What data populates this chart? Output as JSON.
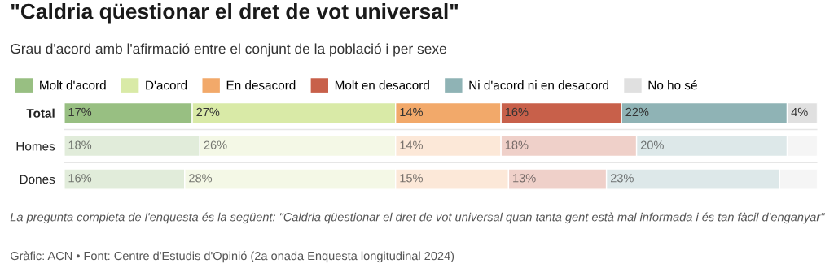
{
  "chart_data": {
    "type": "bar",
    "orientation": "horizontal",
    "stacked": true,
    "data_labels": true,
    "legend": "top",
    "title": "\"Caldria qüestionar el dret de vot universal\"",
    "subtitle": "Grau d'acord amb l'afirmació entre el conjunt de la població i per sexe",
    "categories": [
      "Total",
      "Homes",
      "Dones"
    ],
    "series": [
      {
        "name": "Molt d'acord",
        "color": "#98bf82",
        "colors": [
          "#98bf82",
          "#e1ecda",
          "#e1ecda"
        ],
        "values": [
          17,
          18,
          16
        ],
        "value_labels": [
          "17%",
          "18%",
          "16%"
        ]
      },
      {
        "name": "D'acord",
        "color": "#d9eaa7",
        "colors": [
          "#d9eaa7",
          "#f4f8e6",
          "#f4f8e6"
        ],
        "values": [
          27,
          26,
          28
        ],
        "value_labels": [
          "27%",
          "26%",
          "28%"
        ]
      },
      {
        "name": "En desacord",
        "color": "#f2a96a",
        "colors": [
          "#f2a96a",
          "#fce8d8",
          "#fce8d8"
        ],
        "values": [
          14,
          14,
          15
        ],
        "value_labels": [
          "14%",
          "14%",
          "15%"
        ]
      },
      {
        "name": "Molt en desacord",
        "color": "#c8604a",
        "colors": [
          "#c8604a",
          "#efd0c9",
          "#efd0c9"
        ],
        "values": [
          16,
          18,
          13
        ],
        "value_labels": [
          "16%",
          "18%",
          "13%"
        ]
      },
      {
        "name": "Ni d'acord ni en desacord",
        "color": "#8fb3b5",
        "colors": [
          "#8fb3b5",
          "#dde8e9",
          "#dde8e9"
        ],
        "values": [
          22,
          20,
          23
        ],
        "value_labels": [
          "22%",
          "20%",
          "23%"
        ]
      },
      {
        "name": "No ho sé",
        "color": "#e0e0e0",
        "colors": [
          "#e0e0e0",
          "#f5f5f5",
          "#f5f5f5"
        ],
        "values": [
          4,
          4,
          5
        ],
        "value_labels": [
          "4%",
          null,
          null
        ]
      }
    ],
    "annotations": [
      "La pregunta completa de l'enquesta és la següent: \"Caldria qüestionar el dret de vot universal quan tanta gent està mal informada i és tan fàcil d'enganyar\"",
      "Gràfic: ACN • Font: Centre d'Estudis d'Opinió (2a onada Enquesta longitudinal 2024)"
    ]
  }
}
